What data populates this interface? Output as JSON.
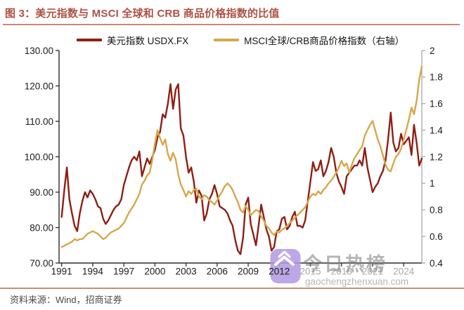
{
  "header": {
    "title": "图 3：美元指数与 MSCI 全球和 CRB 商品价格指数的比值"
  },
  "footer": {
    "source": "资料来源：Wind，招商证券"
  },
  "watermark": {
    "name": "今日热榜",
    "url": "gaochengzhenxuan.com"
  },
  "colors": {
    "title_red": "#AD5143",
    "rule_salmon": "#C98875",
    "line_red": "#8E1F14",
    "line_gold": "#D7A74B",
    "axis_dark": "#2b2b2b",
    "axis_gray": "#a8a8a8",
    "label_black": "#1a1a1a",
    "label_muted": "#a8a8a8",
    "watermark_purple": "rgba(177,152,226,0.85)"
  },
  "chart_data": {
    "type": "line",
    "title": "图 3：美元指数与 MSCI 全球和 CRB 商品价格指数的比值",
    "legend_position": "top-center",
    "grid": false,
    "x_start": 1991,
    "x_step": 0.25,
    "x_axis": {
      "range": [
        1990.75,
        2025.75
      ],
      "ticks": [
        {
          "year": 1991,
          "label": "1991",
          "muted": false
        },
        {
          "year": 1994,
          "label": "1994",
          "muted": false
        },
        {
          "year": 1997,
          "label": "1997",
          "muted": false
        },
        {
          "year": 2000,
          "label": "2000",
          "muted": false
        },
        {
          "year": 2003,
          "label": "2003",
          "muted": false
        },
        {
          "year": 2006,
          "label": "2006",
          "muted": false
        },
        {
          "year": 2009,
          "label": "2009",
          "muted": false
        },
        {
          "year": 2012,
          "label": "2012",
          "muted": false
        },
        {
          "year": 2015,
          "label": "2015",
          "muted": true
        },
        {
          "year": 2018,
          "label": "2018",
          "muted": true
        },
        {
          "year": 2021,
          "label": "2021",
          "muted": true
        },
        {
          "year": 2024,
          "label": "2024",
          "muted": true
        }
      ]
    },
    "left_axis": {
      "range": [
        70,
        130
      ],
      "ticks": [
        {
          "value": 130,
          "label": "130.00"
        },
        {
          "value": 120,
          "label": "120.00"
        },
        {
          "value": 110,
          "label": "110.00"
        },
        {
          "value": 100,
          "label": "100.00"
        },
        {
          "value": 90,
          "label": "90.00"
        },
        {
          "value": 80,
          "label": "80.00"
        },
        {
          "value": 70,
          "label": "70.00"
        }
      ]
    },
    "right_axis": {
      "range": [
        0.4,
        2
      ],
      "ticks": [
        {
          "value": 2,
          "label": "2"
        },
        {
          "value": 1.8,
          "label": "1.8"
        },
        {
          "value": 1.6,
          "label": "1.6"
        },
        {
          "value": 1.4,
          "label": "1.4"
        },
        {
          "value": 1.2,
          "label": "1.2"
        },
        {
          "value": 1,
          "label": "1"
        },
        {
          "value": 0.8,
          "label": "0.8"
        },
        {
          "value": 0.6,
          "label": "0.6"
        },
        {
          "value": 0.4,
          "label": "0.4"
        }
      ]
    },
    "series": [
      {
        "name": "美元指数 USDX.FX",
        "axis": "left",
        "color": "#8E1F14",
        "values": [
          83,
          90.5,
          97,
          88,
          84,
          80.5,
          79,
          84,
          87.5,
          90,
          88.5,
          90.5,
          89.5,
          88,
          86,
          85.5,
          82.5,
          81,
          82,
          83.5,
          85,
          86,
          86.5,
          88,
          92,
          94.5,
          97,
          99,
          100,
          99,
          101.5,
          94.5,
          97,
          99.5,
          98,
          100,
          102,
          105.5,
          107,
          112,
          111,
          115,
          120.5,
          113.5,
          119,
          120.5,
          108,
          106,
          100,
          95.5,
          97,
          93,
          87,
          90.5,
          89,
          82,
          84,
          88,
          89.5,
          92,
          89.5,
          86,
          85.5,
          85,
          84,
          82,
          80.5,
          76.5,
          73.5,
          72.5,
          77,
          86.5,
          88.5,
          81,
          78,
          75,
          80.5,
          86.5,
          83,
          79.5,
          77.5,
          73.5,
          74.5,
          79,
          79.5,
          82.5,
          83,
          79.5,
          80.5,
          83,
          84.5,
          80.5,
          80.5,
          80,
          82,
          87.5,
          93,
          98.5,
          96,
          96.5,
          99,
          94.5,
          96,
          98.5,
          102.5,
          100,
          95.5,
          93,
          91.5,
          89.5,
          94.5,
          95.5,
          96.5,
          97.5,
          97.5,
          99,
          97.5,
          102.5,
          97,
          93.5,
          90,
          91.5,
          92.5,
          94.5,
          96,
          99,
          105,
          112.5,
          104,
          101.5,
          102.5,
          106.5,
          103.5,
          104.5,
          105.5,
          100.5,
          109,
          104,
          97.5,
          99.5
        ]
      },
      {
        "name": "MSCI全球/CRB商品价格指数（右轴）",
        "axis": "right",
        "color": "#D7A74B",
        "values": [
          0.52,
          0.53,
          0.54,
          0.55,
          0.56,
          0.58,
          0.57,
          0.58,
          0.58,
          0.6,
          0.62,
          0.63,
          0.64,
          0.63,
          0.62,
          0.6,
          0.58,
          0.59,
          0.61,
          0.63,
          0.64,
          0.65,
          0.66,
          0.68,
          0.7,
          0.74,
          0.78,
          0.81,
          0.84,
          0.88,
          0.92,
          0.99,
          1.02,
          1.06,
          1.08,
          1.18,
          1.3,
          1.4,
          1.34,
          1.29,
          1.33,
          1.22,
          1.17,
          1.23,
          1.18,
          1.07,
          0.99,
          0.95,
          0.9,
          0.94,
          0.92,
          0.95,
          0.96,
          0.9,
          0.88,
          0.91,
          0.9,
          0.87,
          0.86,
          0.84,
          0.87,
          0.91,
          0.94,
          0.98,
          1.0,
          0.98,
          0.95,
          0.9,
          0.86,
          0.8,
          0.78,
          0.83,
          0.8,
          0.76,
          0.78,
          0.8,
          0.79,
          0.75,
          0.72,
          0.68,
          0.66,
          0.63,
          0.61,
          0.64,
          0.63,
          0.65,
          0.66,
          0.68,
          0.7,
          0.72,
          0.74,
          0.76,
          0.78,
          0.8,
          0.82,
          0.86,
          0.9,
          0.92,
          0.91,
          0.94,
          0.92,
          0.95,
          0.97,
          1.0,
          1.02,
          1.05,
          1.08,
          1.12,
          1.17,
          1.13,
          1.15,
          1.08,
          1.14,
          1.19,
          1.22,
          1.25,
          1.28,
          1.36,
          1.4,
          1.44,
          1.47,
          1.4,
          1.33,
          1.28,
          1.21,
          1.14,
          1.1,
          1.09,
          1.15,
          1.2,
          1.22,
          1.26,
          1.33,
          1.4,
          1.48,
          1.57,
          1.52,
          1.62,
          1.78,
          1.88
        ]
      }
    ]
  }
}
